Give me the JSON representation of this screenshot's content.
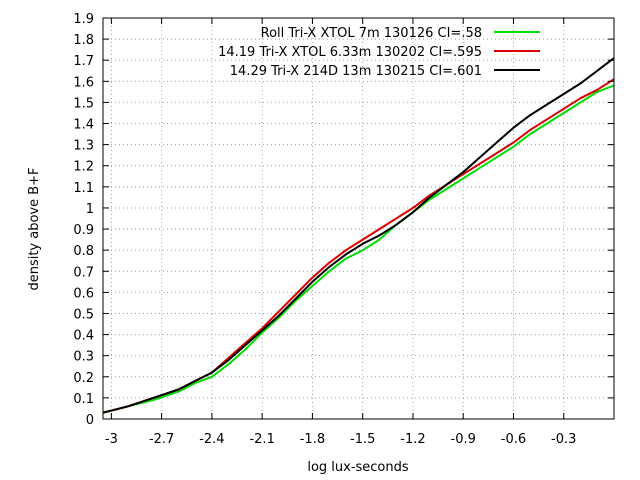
{
  "chart_data": {
    "type": "line",
    "title": "",
    "xlabel": "log lux-seconds",
    "ylabel": "density above B+F",
    "xlim": [
      -3.05,
      -0.0
    ],
    "ylim": [
      0,
      1.9
    ],
    "grid": true,
    "legend_position": "top-right",
    "x_ticks": [
      -3,
      -2.7,
      -2.4,
      -2.1,
      -1.8,
      -1.5,
      -1.2,
      -0.9,
      -0.6,
      -0.3
    ],
    "x_tick_labels": [
      "-3",
      "-2.7",
      "-2.4",
      "-2.1",
      "-1.8",
      "-1.5",
      "-1.2",
      "-0.9",
      "-0.6",
      "-0.3"
    ],
    "y_ticks": [
      0,
      0.1,
      0.2,
      0.3,
      0.4,
      0.5,
      0.6,
      0.7,
      0.8,
      0.9,
      1,
      1.1,
      1.2,
      1.3,
      1.4,
      1.5,
      1.6,
      1.7,
      1.8,
      1.9
    ],
    "y_tick_labels": [
      "0",
      "0.1",
      "0.2",
      "0.3",
      "0.4",
      "0.5",
      "0.6",
      "0.7",
      "0.8",
      "0.9",
      "1",
      "1.1",
      "1.2",
      "1.3",
      "1.4",
      "1.5",
      "1.6",
      "1.7",
      "1.8",
      "1.9"
    ],
    "series": [
      {
        "name": "Roll Tri-X XTOL 7m 130126 CI=.58",
        "color": "#00dd00",
        "points": [
          [
            -3.05,
            0.03
          ],
          [
            -2.9,
            0.06
          ],
          [
            -2.75,
            0.09
          ],
          [
            -2.6,
            0.13
          ],
          [
            -2.5,
            0.17
          ],
          [
            -2.4,
            0.2
          ],
          [
            -2.3,
            0.26
          ],
          [
            -2.2,
            0.33
          ],
          [
            -2.1,
            0.41
          ],
          [
            -2.0,
            0.48
          ],
          [
            -1.9,
            0.56
          ],
          [
            -1.8,
            0.63
          ],
          [
            -1.7,
            0.7
          ],
          [
            -1.6,
            0.76
          ],
          [
            -1.5,
            0.8
          ],
          [
            -1.4,
            0.85
          ],
          [
            -1.3,
            0.92
          ],
          [
            -1.2,
            0.98
          ],
          [
            -1.1,
            1.04
          ],
          [
            -1.0,
            1.09
          ],
          [
            -0.9,
            1.14
          ],
          [
            -0.8,
            1.19
          ],
          [
            -0.7,
            1.24
          ],
          [
            -0.6,
            1.29
          ],
          [
            -0.5,
            1.35
          ],
          [
            -0.4,
            1.4
          ],
          [
            -0.3,
            1.45
          ],
          [
            -0.2,
            1.5
          ],
          [
            -0.1,
            1.55
          ],
          [
            0.0,
            1.58
          ]
        ]
      },
      {
        "name": "14.19 Tri-X XTOL 6.33m 130202 CI=.595",
        "color": "#dd0000",
        "points": [
          [
            -3.05,
            0.03
          ],
          [
            -2.9,
            0.06
          ],
          [
            -2.75,
            0.1
          ],
          [
            -2.6,
            0.14
          ],
          [
            -2.5,
            0.18
          ],
          [
            -2.4,
            0.22
          ],
          [
            -2.3,
            0.29
          ],
          [
            -2.2,
            0.36
          ],
          [
            -2.1,
            0.43
          ],
          [
            -2.0,
            0.51
          ],
          [
            -1.9,
            0.59
          ],
          [
            -1.8,
            0.67
          ],
          [
            -1.7,
            0.74
          ],
          [
            -1.6,
            0.8
          ],
          [
            -1.5,
            0.85
          ],
          [
            -1.4,
            0.9
          ],
          [
            -1.3,
            0.95
          ],
          [
            -1.2,
            1.0
          ],
          [
            -1.1,
            1.06
          ],
          [
            -1.0,
            1.11
          ],
          [
            -0.9,
            1.16
          ],
          [
            -0.8,
            1.21
          ],
          [
            -0.7,
            1.26
          ],
          [
            -0.6,
            1.31
          ],
          [
            -0.5,
            1.37
          ],
          [
            -0.4,
            1.42
          ],
          [
            -0.3,
            1.47
          ],
          [
            -0.2,
            1.52
          ],
          [
            -0.1,
            1.56
          ],
          [
            0.0,
            1.61
          ]
        ]
      },
      {
        "name": "14.29 Tri-X 214D 13m 130215 CI=.601",
        "color": "#000000",
        "points": [
          [
            -3.05,
            0.03
          ],
          [
            -2.9,
            0.06
          ],
          [
            -2.75,
            0.1
          ],
          [
            -2.6,
            0.14
          ],
          [
            -2.5,
            0.18
          ],
          [
            -2.4,
            0.22
          ],
          [
            -2.3,
            0.28
          ],
          [
            -2.2,
            0.35
          ],
          [
            -2.1,
            0.42
          ],
          [
            -2.0,
            0.49
          ],
          [
            -1.9,
            0.57
          ],
          [
            -1.8,
            0.65
          ],
          [
            -1.7,
            0.72
          ],
          [
            -1.6,
            0.78
          ],
          [
            -1.5,
            0.83
          ],
          [
            -1.4,
            0.87
          ],
          [
            -1.3,
            0.92
          ],
          [
            -1.2,
            0.98
          ],
          [
            -1.1,
            1.05
          ],
          [
            -1.0,
            1.11
          ],
          [
            -0.9,
            1.17
          ],
          [
            -0.8,
            1.24
          ],
          [
            -0.7,
            1.31
          ],
          [
            -0.6,
            1.38
          ],
          [
            -0.5,
            1.44
          ],
          [
            -0.4,
            1.49
          ],
          [
            -0.3,
            1.54
          ],
          [
            -0.2,
            1.59
          ],
          [
            -0.1,
            1.65
          ],
          [
            0.0,
            1.71
          ]
        ]
      }
    ]
  }
}
